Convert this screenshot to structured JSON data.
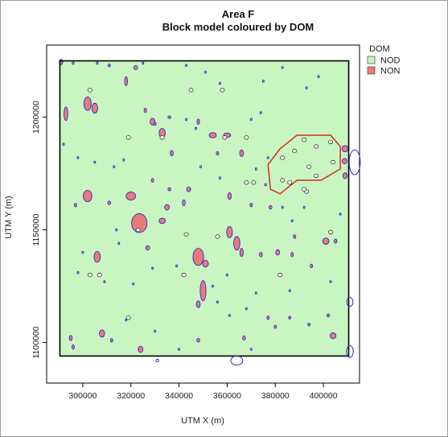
{
  "chart_data": {
    "type": "map",
    "title": "Area F",
    "subtitle": "Block model coloured by DOM",
    "xlabel": "UTM X (m)",
    "ylabel": "UTM Y (m)",
    "xlim": [
      285000,
      415000
    ],
    "ylim": [
      1082000,
      1232000
    ],
    "xticks": [
      300000,
      320000,
      340000,
      360000,
      380000,
      400000
    ],
    "xtick_labels": [
      "300000",
      "320000",
      "340000",
      "360000",
      "380000",
      "400000"
    ],
    "yticks": [
      1100000,
      1150000,
      1200000
    ],
    "ytick_labels": [
      "1100000",
      "1150000",
      "1200000"
    ],
    "grid": false,
    "legend": {
      "title": "DOM",
      "position": "top-right",
      "entries": [
        {
          "label": "NOD",
          "color": "#c8f5c0"
        },
        {
          "label": "NON",
          "color": "#e87a78"
        }
      ]
    },
    "block_extent": {
      "xmin": 290500,
      "xmax": 410500,
      "ymin": 1094000,
      "ymax": 1225000
    },
    "colors": {
      "NOD": "#c8f5c0",
      "NON": "#e87a78",
      "outline": "#2b2bd6",
      "boundary": "#000000",
      "polygon": "#d62b1f",
      "points_fill": "#ffffff",
      "points_stroke": "#333333"
    },
    "non_patches": [
      [
        291,
        1224.5,
        0.7,
        1.2
      ],
      [
        302,
        1206,
        1.5,
        3.0
      ],
      [
        305,
        1204,
        1.2,
        2.2
      ],
      [
        293,
        1201.5,
        0.8,
        3.0
      ],
      [
        311,
        1223,
        0.3,
        0.6
      ],
      [
        318,
        1216,
        0.6,
        2.0
      ],
      [
        322,
        1222,
        0.8,
        0.9
      ],
      [
        326,
        1203,
        0.5,
        1.0
      ],
      [
        329,
        1198,
        1.0,
        1.5
      ],
      [
        333,
        1193,
        1.3,
        2.0
      ],
      [
        337,
        1184,
        0.6,
        1.2
      ],
      [
        329,
        1172,
        0.5,
        0.8
      ],
      [
        336,
        1168,
        0.6,
        0.7
      ],
      [
        348,
        1198,
        0.5,
        1.2
      ],
      [
        354,
        1192,
        1.5,
        1.2
      ],
      [
        360,
        1192,
        1.5,
        1.0
      ],
      [
        366,
        1184,
        0.8,
        1.5
      ],
      [
        356,
        1184,
        0.4,
        0.8
      ],
      [
        302,
        1165,
        1.8,
        2.5
      ],
      [
        297,
        1161,
        0.4,
        0.8
      ],
      [
        320,
        1165,
        2.0,
        1.8
      ],
      [
        323.5,
        1153,
        3.2,
        4.2
      ],
      [
        311,
        1162,
        0.6,
        0.8
      ],
      [
        335,
        1160,
        1.0,
        1.2
      ],
      [
        333,
        1154,
        1.3,
        1.2
      ],
      [
        344,
        1168,
        0.8,
        1.0
      ],
      [
        342,
        1162,
        0.6,
        1.3
      ],
      [
        361,
        1165,
        0.7,
        1.5
      ],
      [
        370,
        1161,
        0.4,
        0.8
      ],
      [
        378,
        1160,
        0.6,
        0.8
      ],
      [
        361,
        1149,
        1.2,
        2.5
      ],
      [
        364,
        1144,
        1.3,
        3.0
      ],
      [
        366,
        1140,
        0.7,
        1.8
      ],
      [
        348,
        1138,
        2.2,
        3.8
      ],
      [
        351,
        1135,
        1.2,
        1.5
      ],
      [
        306,
        1138,
        1.3,
        2.4
      ],
      [
        327,
        1142,
        0.8,
        1.0
      ],
      [
        350,
        1123,
        1.2,
        4.5
      ],
      [
        348,
        1117,
        0.8,
        1.5
      ],
      [
        374,
        1139,
        0.6,
        1.0
      ],
      [
        381,
        1140,
        0.8,
        1.2
      ],
      [
        388,
        1147,
        0.4,
        0.8
      ],
      [
        387,
        1139,
        0.5,
        1.0
      ],
      [
        401,
        1145,
        1.3,
        1.4
      ],
      [
        405,
        1145,
        0.6,
        0.9
      ],
      [
        395,
        1134,
        0.5,
        0.8
      ],
      [
        402,
        1112,
        0.4,
        0.7
      ],
      [
        409,
        1186,
        1.3,
        1.4
      ],
      [
        409,
        1174,
        0.9,
        1.3
      ],
      [
        408.8,
        1180.5,
        1.0,
        1.2
      ],
      [
        404,
        1103,
        1.2,
        1.3
      ],
      [
        295,
        1102,
        0.6,
        1.2
      ],
      [
        296,
        1098,
        0.5,
        1.0
      ],
      [
        308,
        1104,
        1.1,
        1.6
      ],
      [
        312,
        1101,
        0.5,
        0.8
      ],
      [
        324,
        1097,
        1.0,
        1.4
      ],
      [
        348,
        1101,
        0.6,
        0.8
      ],
      [
        367,
        1102,
        0.6,
        0.9
      ],
      [
        377,
        1111,
        0.5,
        0.8
      ],
      [
        380,
        1107,
        0.5,
        0.7
      ],
      [
        386,
        1111,
        0.4,
        0.6
      ],
      [
        394,
        1108,
        0.4,
        0.6
      ],
      [
        336,
        1200,
        0.6,
        0.6
      ],
      [
        330,
        1197,
        0.5,
        0.6
      ]
    ],
    "outline_shapes": [
      [
        296,
        1224,
        0.4,
        0.4
      ],
      [
        306,
        1224,
        0.3,
        0.5
      ],
      [
        325,
        1224,
        0.3,
        0.4
      ],
      [
        343,
        1223,
        0.2,
        0.4
      ],
      [
        351,
        1220,
        0.3,
        0.5
      ],
      [
        357,
        1215,
        0.3,
        0.4
      ],
      [
        375,
        1216,
        0.3,
        0.4
      ],
      [
        383,
        1222,
        0.3,
        0.4
      ],
      [
        398,
        1218,
        0.2,
        0.4
      ],
      [
        393,
        1213,
        0.2,
        0.5
      ],
      [
        374,
        1202,
        0.2,
        0.4
      ],
      [
        370,
        1199,
        0.3,
        0.4
      ],
      [
        343,
        1199,
        0.2,
        0.4
      ],
      [
        347,
        1195,
        0.3,
        0.3
      ],
      [
        349,
        1178,
        0.3,
        0.4
      ],
      [
        357,
        1173,
        0.2,
        0.5
      ],
      [
        372,
        1177,
        0.3,
        0.5
      ],
      [
        377,
        1182,
        0.3,
        0.4
      ],
      [
        376,
        1170,
        0.2,
        0.4
      ],
      [
        383,
        1160,
        0.2,
        0.4
      ],
      [
        387,
        1154,
        0.3,
        0.4
      ],
      [
        392,
        1160,
        0.2,
        0.4
      ],
      [
        317,
        1181,
        0.3,
        0.5
      ],
      [
        313,
        1178,
        0.2,
        0.4
      ],
      [
        298,
        1182,
        0.3,
        0.4
      ],
      [
        292,
        1188,
        0.3,
        0.4
      ],
      [
        305,
        1180,
        0.2,
        0.3
      ],
      [
        314,
        1150,
        0.2,
        0.4
      ],
      [
        315,
        1144,
        0.3,
        0.4
      ],
      [
        329,
        1133,
        0.3,
        0.4
      ],
      [
        321,
        1126,
        0.2,
        0.4
      ],
      [
        339,
        1134,
        0.3,
        0.3
      ],
      [
        354,
        1125,
        0.2,
        0.4
      ],
      [
        360,
        1130,
        0.2,
        0.3
      ],
      [
        372,
        1122,
        0.3,
        0.4
      ],
      [
        368,
        1115,
        0.2,
        0.4
      ],
      [
        361,
        1112,
        0.3,
        0.4
      ],
      [
        356,
        1118,
        0.2,
        0.3
      ],
      [
        370,
        1097,
        0.3,
        0.4
      ],
      [
        340,
        1097,
        0.3,
        0.4
      ],
      [
        330,
        1105,
        0.2,
        0.3
      ],
      [
        318,
        1110,
        0.3,
        0.4
      ],
      [
        298,
        1131,
        0.2,
        0.3
      ],
      [
        300,
        1140,
        0.2,
        0.4
      ],
      [
        309,
        1127,
        0.2,
        0.3
      ],
      [
        407,
        1157,
        0.3,
        0.4
      ],
      [
        403,
        1127,
        0.3,
        0.3
      ],
      [
        386,
        1123,
        0.2,
        0.4
      ]
    ],
    "edge_outlines": [
      {
        "cx": 413,
        "cy": 1180,
        "rx": 2.3,
        "ry": 5.5
      },
      {
        "cx": 411,
        "cy": 1118,
        "rx": 1.3,
        "ry": 2.0
      },
      {
        "cx": 411,
        "cy": 1096,
        "rx": 1.4,
        "ry": 2.6
      },
      {
        "cx": 364,
        "cy": 1092,
        "rx": 2.5,
        "ry": 2.0
      },
      {
        "cx": 331,
        "cy": 1092,
        "rx": 0.6,
        "ry": 0.6
      }
    ],
    "sample_points": [
      [
        303,
        1212
      ],
      [
        319,
        1191
      ],
      [
        333,
        1191
      ],
      [
        345,
        1212
      ],
      [
        358,
        1212
      ],
      [
        368,
        1191
      ],
      [
        359,
        1191
      ],
      [
        323,
        1150
      ],
      [
        343,
        1148
      ],
      [
        356,
        1147
      ],
      [
        368,
        1171
      ],
      [
        371,
        1171
      ],
      [
        342,
        1130
      ],
      [
        303,
        1130
      ],
      [
        307,
        1130
      ],
      [
        386,
        1171
      ],
      [
        393,
        1167
      ],
      [
        403,
        1149
      ],
      [
        383,
        1182
      ],
      [
        388,
        1185
      ],
      [
        392,
        1190
      ],
      [
        397,
        1187
      ],
      [
        403,
        1189
      ],
      [
        394,
        1178
      ],
      [
        404,
        1180
      ],
      [
        383,
        1172
      ],
      [
        397,
        1174
      ],
      [
        392,
        1168
      ],
      [
        382,
        1130
      ],
      [
        319,
        1111
      ]
    ],
    "polygon": [
      [
        382,
        1186
      ],
      [
        389,
        1192
      ],
      [
        403,
        1192
      ],
      [
        407,
        1187
      ],
      [
        407,
        1177
      ],
      [
        399,
        1172
      ],
      [
        389,
        1172
      ],
      [
        382,
        1166
      ],
      [
        378,
        1168
      ],
      [
        377,
        1179
      ]
    ]
  }
}
